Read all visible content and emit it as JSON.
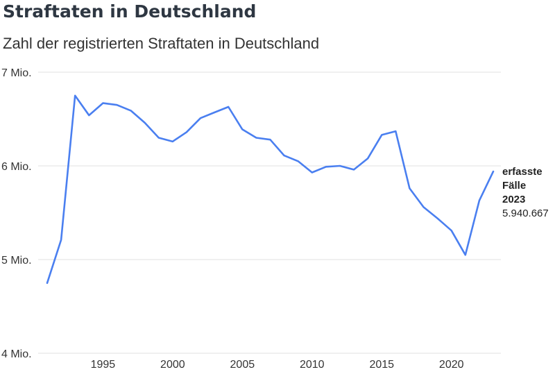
{
  "header": {
    "title": "Straftaten in Deutschland",
    "subtitle": "Zahl der registrierten Straftaten in Deutschland"
  },
  "annotation": {
    "line1": "erfasste",
    "line2": "Fälle",
    "line3": "2023",
    "value": "5.940.667"
  },
  "colors": {
    "line": "#4a7ff0",
    "grid": "#e0e0e0",
    "text": "#333333"
  },
  "chart_data": {
    "type": "line",
    "x": [
      1991,
      1992,
      1993,
      1994,
      1995,
      1996,
      1997,
      1998,
      1999,
      2000,
      2001,
      2002,
      2003,
      2004,
      2005,
      2006,
      2007,
      2008,
      2009,
      2010,
      2011,
      2012,
      2013,
      2014,
      2015,
      2016,
      2017,
      2018,
      2019,
      2020,
      2021,
      2022,
      2023
    ],
    "values": [
      4.75,
      5.21,
      6.75,
      6.54,
      6.67,
      6.65,
      6.59,
      6.46,
      6.3,
      6.26,
      6.36,
      6.51,
      6.57,
      6.63,
      6.39,
      6.3,
      6.28,
      6.11,
      6.05,
      5.93,
      5.99,
      6.0,
      5.96,
      6.08,
      6.33,
      6.37,
      5.76,
      5.56,
      5.44,
      5.31,
      5.05,
      5.63,
      5.94
    ],
    "xticks": [
      1995,
      2000,
      2005,
      2010,
      2015,
      2020
    ],
    "yticks": [
      4,
      5,
      6,
      7
    ],
    "ytick_labels": [
      "4 Mio.",
      "5 Mio.",
      "6 Mio.",
      "7 Mio."
    ],
    "ylim": [
      4,
      7
    ],
    "xlim": [
      1991,
      2023
    ],
    "grid": true,
    "title": "Straftaten in Deutschland",
    "subtitle": "Zahl der registrierten Straftaten in Deutschland",
    "xlabel": "",
    "ylabel": ""
  }
}
